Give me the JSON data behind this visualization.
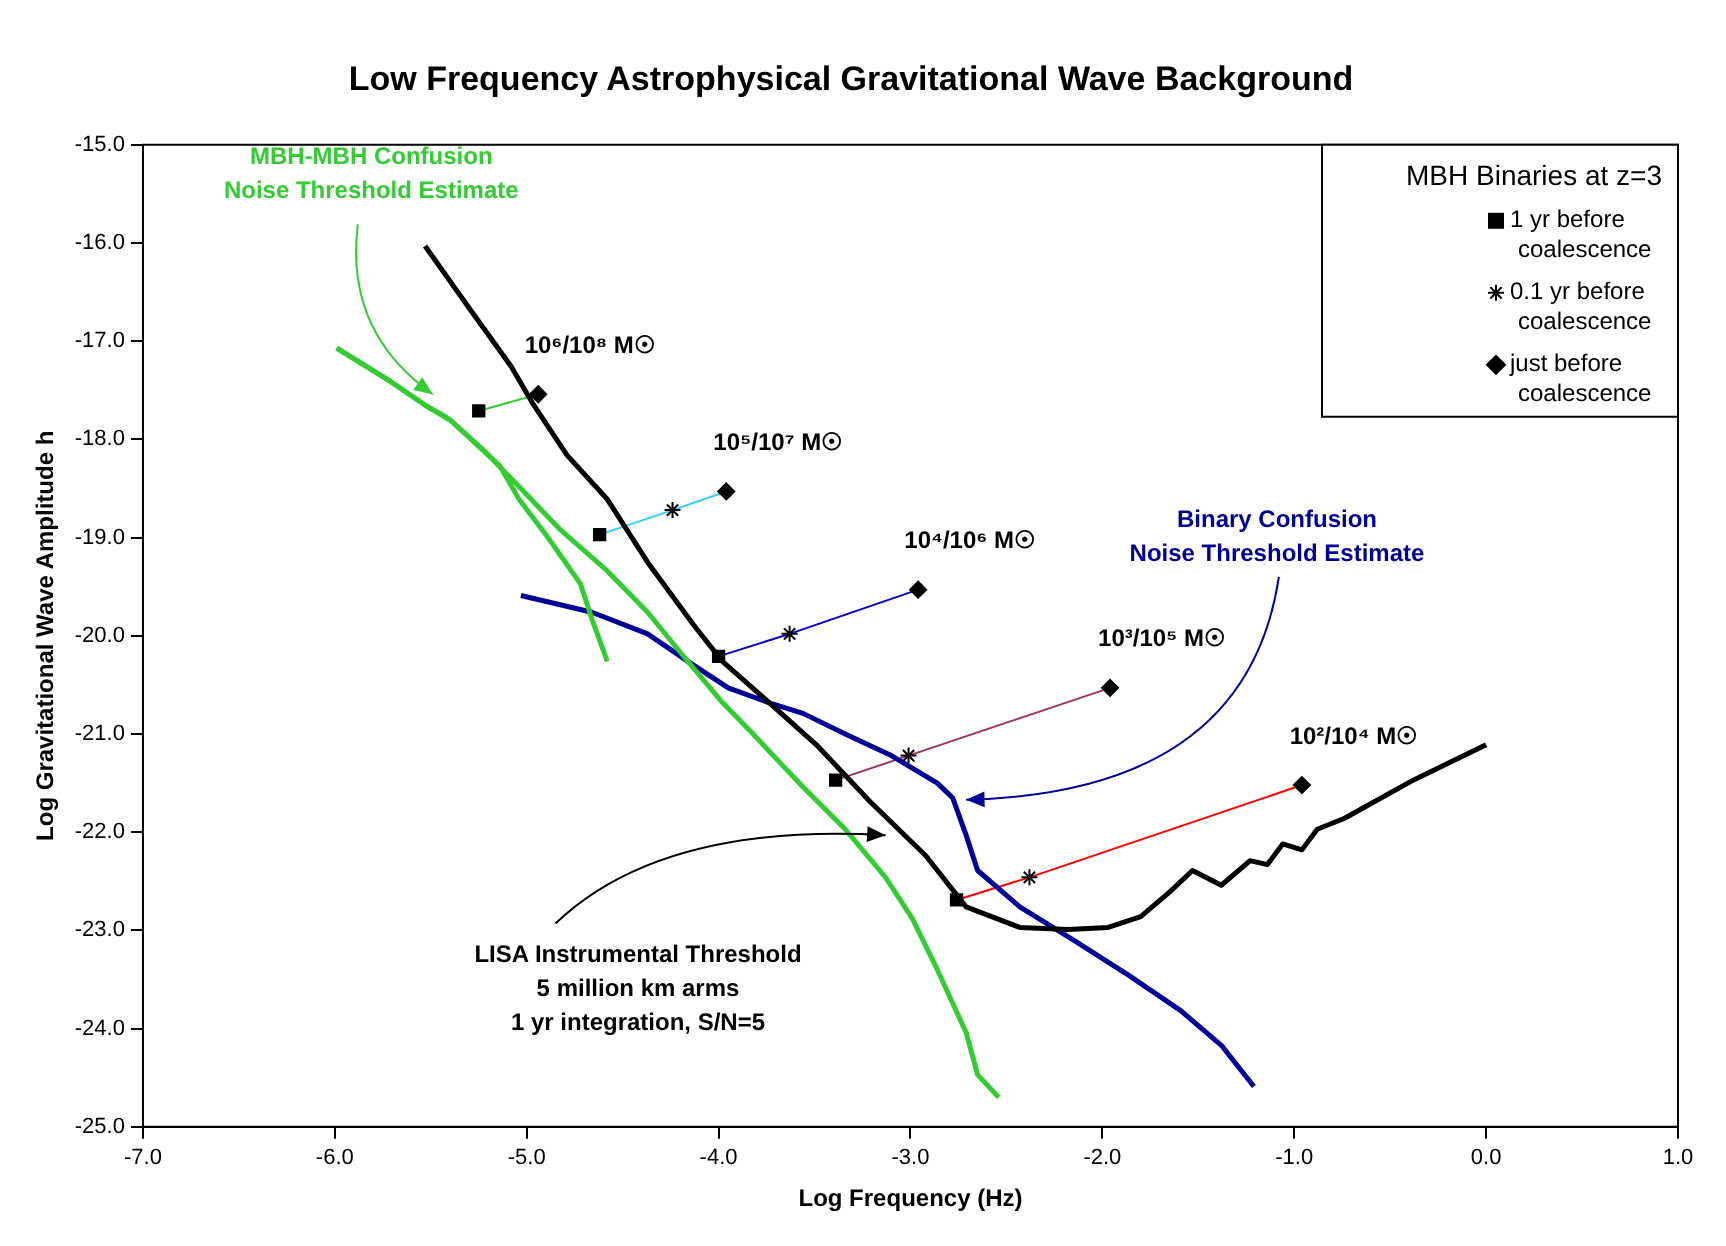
{
  "chart_data": {
    "type": "line",
    "title": "Low Frequency Astrophysical Gravitational Wave Background",
    "xlabel": "Log Frequency (Hz)",
    "ylabel": "Log Gravitational Wave Amplitude h",
    "xlim": [
      -7,
      1
    ],
    "ylim": [
      -25,
      -15
    ],
    "xticks": [
      {
        "value": -7,
        "label": "-7.0"
      },
      {
        "value": -6,
        "label": "-6.0"
      },
      {
        "value": -5,
        "label": "-5.0"
      },
      {
        "value": -4,
        "label": "-4.0"
      },
      {
        "value": -3,
        "label": "-3.0"
      },
      {
        "value": -2,
        "label": "-2.0"
      },
      {
        "value": -1,
        "label": "-1.0"
      },
      {
        "value": 0,
        "label": "0.0"
      },
      {
        "value": 1,
        "label": "1.0"
      }
    ],
    "yticks": [
      {
        "value": -25,
        "label": "-25.0"
      },
      {
        "value": -24,
        "label": "-24.0"
      },
      {
        "value": -23,
        "label": "-23.0"
      },
      {
        "value": -22,
        "label": "-22.0"
      },
      {
        "value": -21,
        "label": "-21.0"
      },
      {
        "value": -20,
        "label": "-20.0"
      },
      {
        "value": -19,
        "label": "-19.0"
      },
      {
        "value": -18,
        "label": "-18.0"
      },
      {
        "value": -17,
        "label": "-17.0"
      },
      {
        "value": -16,
        "label": "-16.0"
      },
      {
        "value": -15,
        "label": "-15.0"
      }
    ],
    "grid": false,
    "legend": "top right",
    "legend_title": "MBH Binaries at z=3",
    "series": [
      {
        "color": "#000000",
        "marker": "none",
        "x": [
          -5.53,
          -5.29,
          -5.08,
          -4.97,
          -4.79,
          -4.58,
          -4.37,
          -4.13,
          -3.98,
          -3.76,
          -3.49,
          -3.21,
          -2.92,
          -2.71,
          -2.43,
          -2.18,
          -1.97,
          -1.8,
          -1.65,
          -1.53,
          -1.38,
          -1.23,
          -1.14,
          -1.06,
          -0.96,
          -0.88,
          -0.74,
          -0.38,
          0.0
        ],
        "values": [
          -16.03,
          -16.69,
          -17.26,
          -17.63,
          -18.16,
          -18.61,
          -19.25,
          -19.89,
          -20.26,
          -20.64,
          -21.11,
          -21.69,
          -22.24,
          -22.76,
          -22.97,
          -22.99,
          -22.97,
          -22.86,
          -22.61,
          -22.39,
          -22.54,
          -22.29,
          -22.33,
          -22.12,
          -22.18,
          -21.97,
          -21.86,
          -21.47,
          -21.11
        ]
      },
      {
        "name": "MBH-MBH Confusion\nNoise Threshold Estimate",
        "color": "#33cc33",
        "marker": "none",
        "x": [
          -5.99,
          -5.71,
          -5.53,
          -5.4,
          -5.22,
          -5.04,
          -4.83,
          -4.58,
          -4.37,
          -4.19,
          -3.98,
          -3.84,
          -3.56,
          -3.34,
          -3.13,
          -2.99,
          -2.86,
          -2.71,
          -2.65,
          -2.54
        ],
        "values": [
          -17.07,
          -17.41,
          -17.65,
          -17.8,
          -18.12,
          -18.48,
          -18.91,
          -19.34,
          -19.76,
          -20.19,
          -20.68,
          -20.96,
          -21.54,
          -21.97,
          -22.46,
          -22.88,
          -23.4,
          -24.04,
          -24.47,
          -24.7
        ]
      },
      {
        "color": "#33cc33",
        "marker": "none",
        "x": [
          -5.99,
          -5.71,
          -5.53,
          -5.4,
          -5.14,
          -5.04,
          -4.9,
          -4.72,
          -4.66,
          -4.58
        ],
        "values": [
          -17.07,
          -17.41,
          -17.65,
          -17.8,
          -18.27,
          -18.61,
          -18.97,
          -19.47,
          -19.83,
          -20.26
        ]
      },
      {
        "name": "Binary Confusion\nNoise Threshold Estimate",
        "color": "#000099",
        "marker": "none",
        "x": [
          -5.03,
          -4.66,
          -4.37,
          -4.16,
          -3.95,
          -3.74,
          -3.56,
          -3.34,
          -3.1,
          -2.86,
          -2.78,
          -2.71,
          -2.65,
          -2.43,
          -2.15,
          -1.86,
          -1.59,
          -1.38,
          -1.21
        ],
        "values": [
          -19.59,
          -19.76,
          -19.98,
          -20.26,
          -20.53,
          -20.68,
          -20.79,
          -21.0,
          -21.22,
          -21.5,
          -21.65,
          -22.03,
          -22.39,
          -22.76,
          -23.1,
          -23.46,
          -23.82,
          -24.17,
          -24.59
        ]
      },
      {
        "color": "#33cc33",
        "marker": "none",
        "x": [
          -5.25,
          -4.94
        ],
        "values": [
          -17.71,
          -17.54
        ]
      },
      {
        "color": "#33ccff",
        "marker": "none",
        "x": [
          -4.62,
          -4.24,
          -3.96
        ],
        "values": [
          -18.97,
          -18.72,
          -18.53
        ]
      },
      {
        "color": "#0000cc",
        "marker": "none",
        "x": [
          -4.0,
          -3.63,
          -2.96
        ],
        "values": [
          -20.21,
          -19.98,
          -19.53
        ]
      },
      {
        "color": "#993366",
        "marker": "none",
        "x": [
          -3.39,
          -3.01,
          -1.96
        ],
        "values": [
          -21.47,
          -21.22,
          -20.53
        ]
      },
      {
        "color": "#ff0000",
        "marker": "none",
        "x": [
          -2.76,
          -2.38,
          -0.96
        ],
        "values": [
          -22.69,
          -22.46,
          -21.52
        ]
      },
      {
        "type": "scatter",
        "name": "1 yr before coalescence",
        "color": "#000000",
        "marker": "square",
        "x": [
          -5.25,
          -4.62,
          -4.0,
          -3.39,
          -2.76
        ],
        "values": [
          -17.71,
          -18.97,
          -20.21,
          -21.47,
          -22.69
        ]
      },
      {
        "type": "scatter",
        "name": "0.1 yr before coalescence",
        "color": "#000000",
        "marker": "cross",
        "x": [
          -4.24,
          -3.63,
          -3.01,
          -2.38
        ],
        "values": [
          -18.72,
          -19.98,
          -21.22,
          -22.46
        ]
      },
      {
        "type": "scatter",
        "name": "just before coalescence",
        "color": "#000000",
        "marker": "diamond",
        "x": [
          -4.94,
          -3.96,
          -2.96,
          -1.96,
          -0.96
        ],
        "values": [
          -17.54,
          -18.53,
          -19.53,
          -20.53,
          -21.52
        ]
      }
    ],
    "annotations": [
      {
        "text": "10⁶/10⁸ M☉",
        "x": -4.94,
        "y": -17.54
      },
      {
        "text": "10⁵/10⁷ M☉",
        "x": -3.96,
        "y": -18.53
      },
      {
        "text": "10⁴/10⁶ M☉",
        "x": -2.96,
        "y": -19.53
      },
      {
        "text": "10³/10⁵ M☉",
        "x": -1.96,
        "y": -20.53
      },
      {
        "text": "10²/10⁴ M☉",
        "x": -0.96,
        "y": -21.52
      },
      "LISA Instrumental Threshold\n5 million km arms\n1 yr integration, S/N=5"
    ]
  }
}
